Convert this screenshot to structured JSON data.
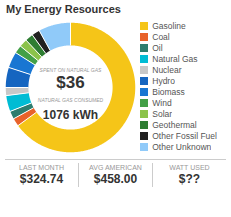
{
  "chart_data": {
    "type": "donut",
    "title": "My Energy Resources",
    "categories": [
      "Gasoline",
      "Coal",
      "Oil",
      "Natural Gas",
      "Nuclear",
      "Hydro",
      "Biomass",
      "Wind",
      "Solar",
      "Geothermal",
      "Other Fossil Fuel",
      "Other Unknown"
    ],
    "values": [
      65,
      2,
      2,
      4,
      2,
      5,
      4,
      2,
      2,
      2,
      2,
      8
    ],
    "colors": [
      "#F5C518",
      "#E8622A",
      "#2E7D6E",
      "#00BCD4",
      "#C8C8C8",
      "#1565C0",
      "#1976D2",
      "#43A047",
      "#8BC34A",
      "#2E7D32",
      "#212121",
      "#90CAF9"
    ],
    "legend": "right",
    "annotations": [
      "SPENT ON NATURAL GAS",
      "$36",
      "NATURAL GAS CONSUMED",
      "1076 kWh"
    ],
    "stats": [
      {
        "label": "LAST MONTH",
        "value": "$324.74"
      },
      {
        "label": "AVG AMERICAN",
        "value": "$458.00"
      },
      {
        "label": "WATT USED",
        "value": "$??"
      }
    ]
  }
}
